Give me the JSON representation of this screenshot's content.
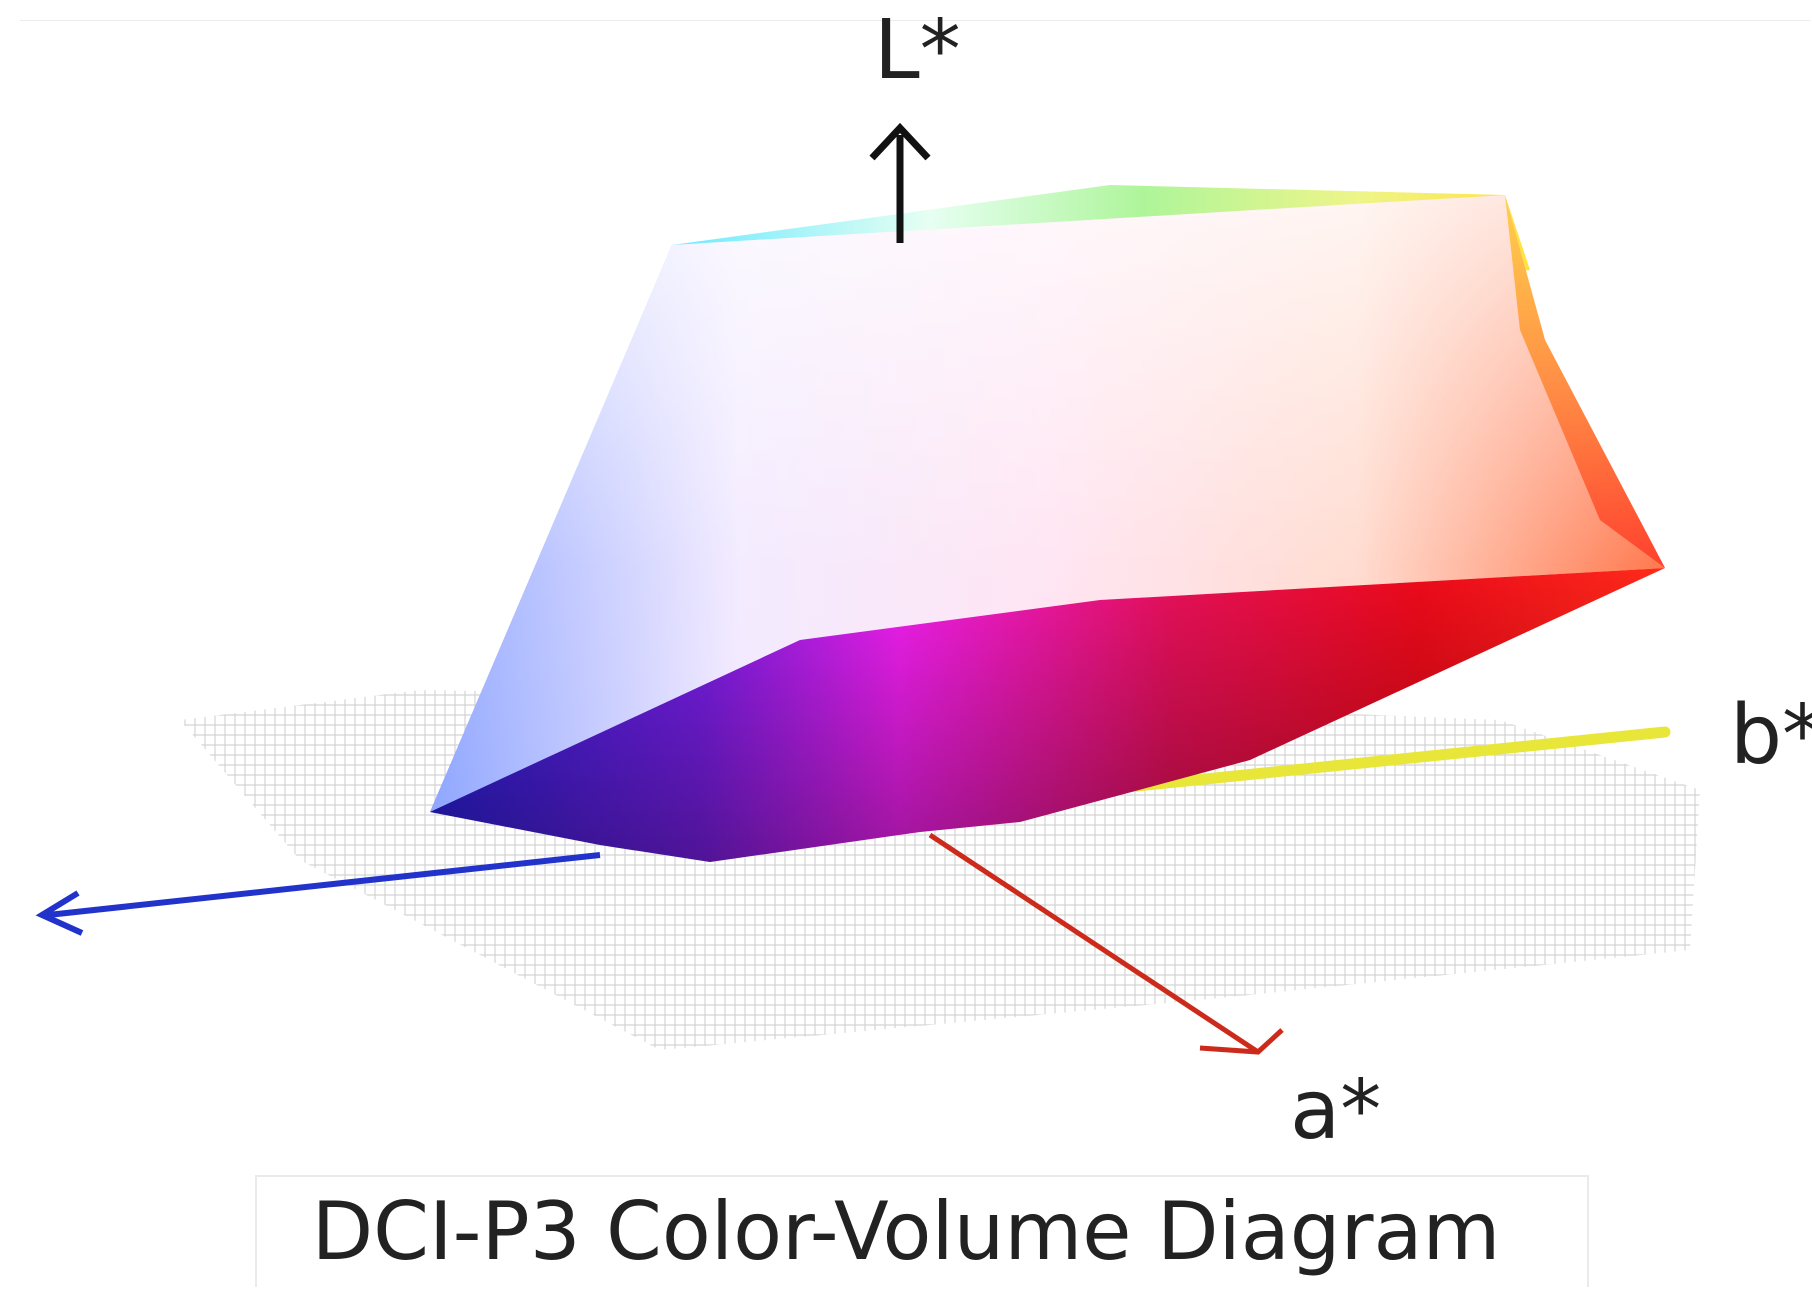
{
  "axes": {
    "l_label": "L*",
    "b_label": "b*",
    "a_label": "a*"
  },
  "caption": "DCI-P3 Color-Volume Diagram",
  "colors": {
    "blue_axis": "#2233cc",
    "red_axis": "#cc2a1a",
    "yellow_axis": "#e9e63a",
    "black_axis": "#111111",
    "grid": "#c8c8c8"
  }
}
